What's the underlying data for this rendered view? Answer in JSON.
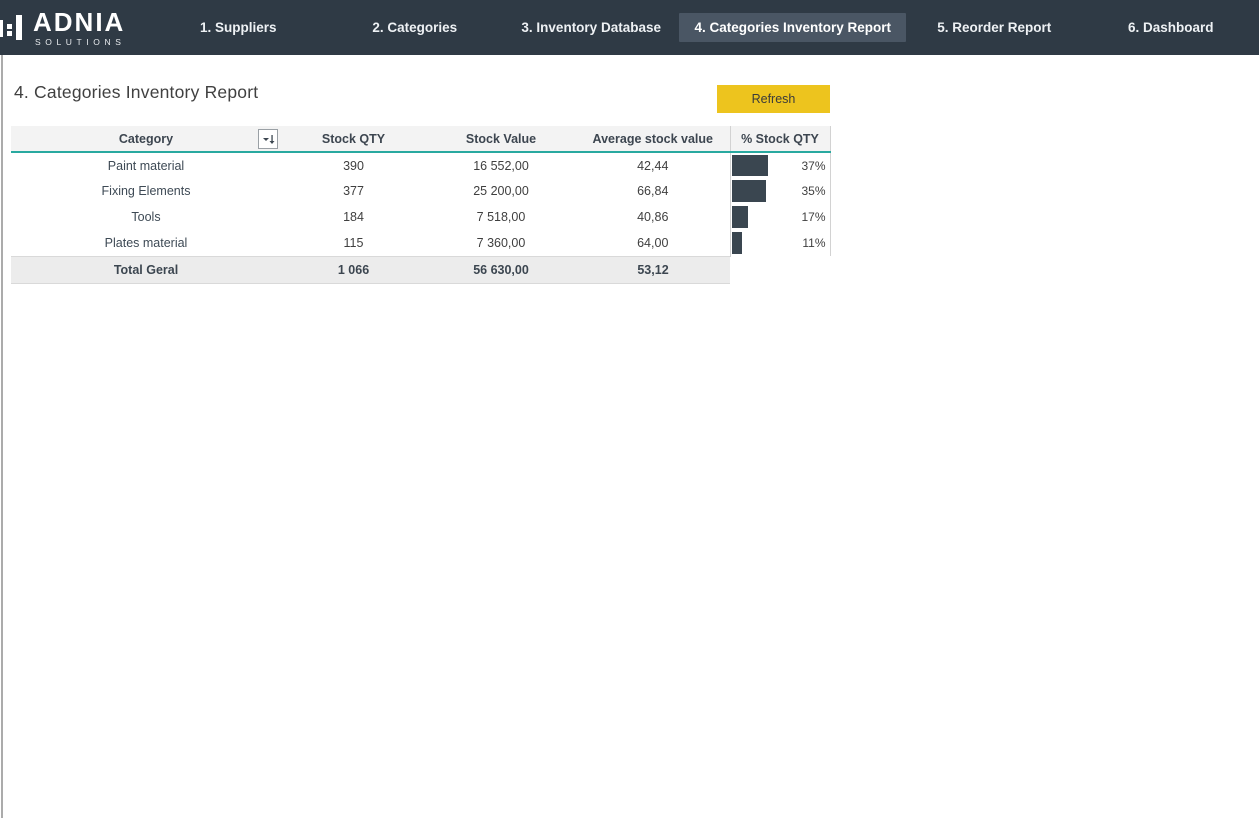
{
  "brand": {
    "name": "ADNIA",
    "tagline": "SOLUTIONS"
  },
  "nav": {
    "tabs": [
      {
        "label": "1. Suppliers",
        "active": false
      },
      {
        "label": "2. Categories",
        "active": false
      },
      {
        "label": "3. Inventory Database",
        "active": false
      },
      {
        "label": "4. Categories Inventory Report",
        "active": true
      },
      {
        "label": "5. Reorder Report",
        "active": false
      },
      {
        "label": "6. Dashboard",
        "active": false
      }
    ]
  },
  "page": {
    "title": "4. Categories Inventory Report",
    "refresh_button": "Refresh"
  },
  "table": {
    "headers": {
      "category": "Category",
      "stock_qty": "Stock QTY",
      "stock_value": "Stock Value",
      "avg_stock_value": "Average stock value",
      "pct_stock_qty": "% Stock QTY"
    },
    "rows": [
      {
        "category": "Paint material",
        "stock_qty": "390",
        "stock_value": "16 552,00",
        "avg_stock_value": "42,44",
        "pct_label": "37%",
        "pct_value": 37
      },
      {
        "category": "Fixing Elements",
        "stock_qty": "377",
        "stock_value": "25 200,00",
        "avg_stock_value": "66,84",
        "pct_label": "35%",
        "pct_value": 35
      },
      {
        "category": "Tools",
        "stock_qty": "184",
        "stock_value": "7 518,00",
        "avg_stock_value": "40,86",
        "pct_label": "17%",
        "pct_value": 17
      },
      {
        "category": "Plates material",
        "stock_qty": "115",
        "stock_value": "7 360,00",
        "avg_stock_value": "64,00",
        "pct_label": "11%",
        "pct_value": 11
      }
    ],
    "total": {
      "label": "Total Geral",
      "stock_qty": "1 066",
      "stock_value": "56 630,00",
      "avg_stock_value": "53,12"
    }
  },
  "colors": {
    "nav_bg": "#2f3a45",
    "nav_active_bg": "#4a5664",
    "accent_teal": "#29a9a0",
    "refresh_yellow": "#edc41e",
    "bar_fill": "#3a4650"
  }
}
